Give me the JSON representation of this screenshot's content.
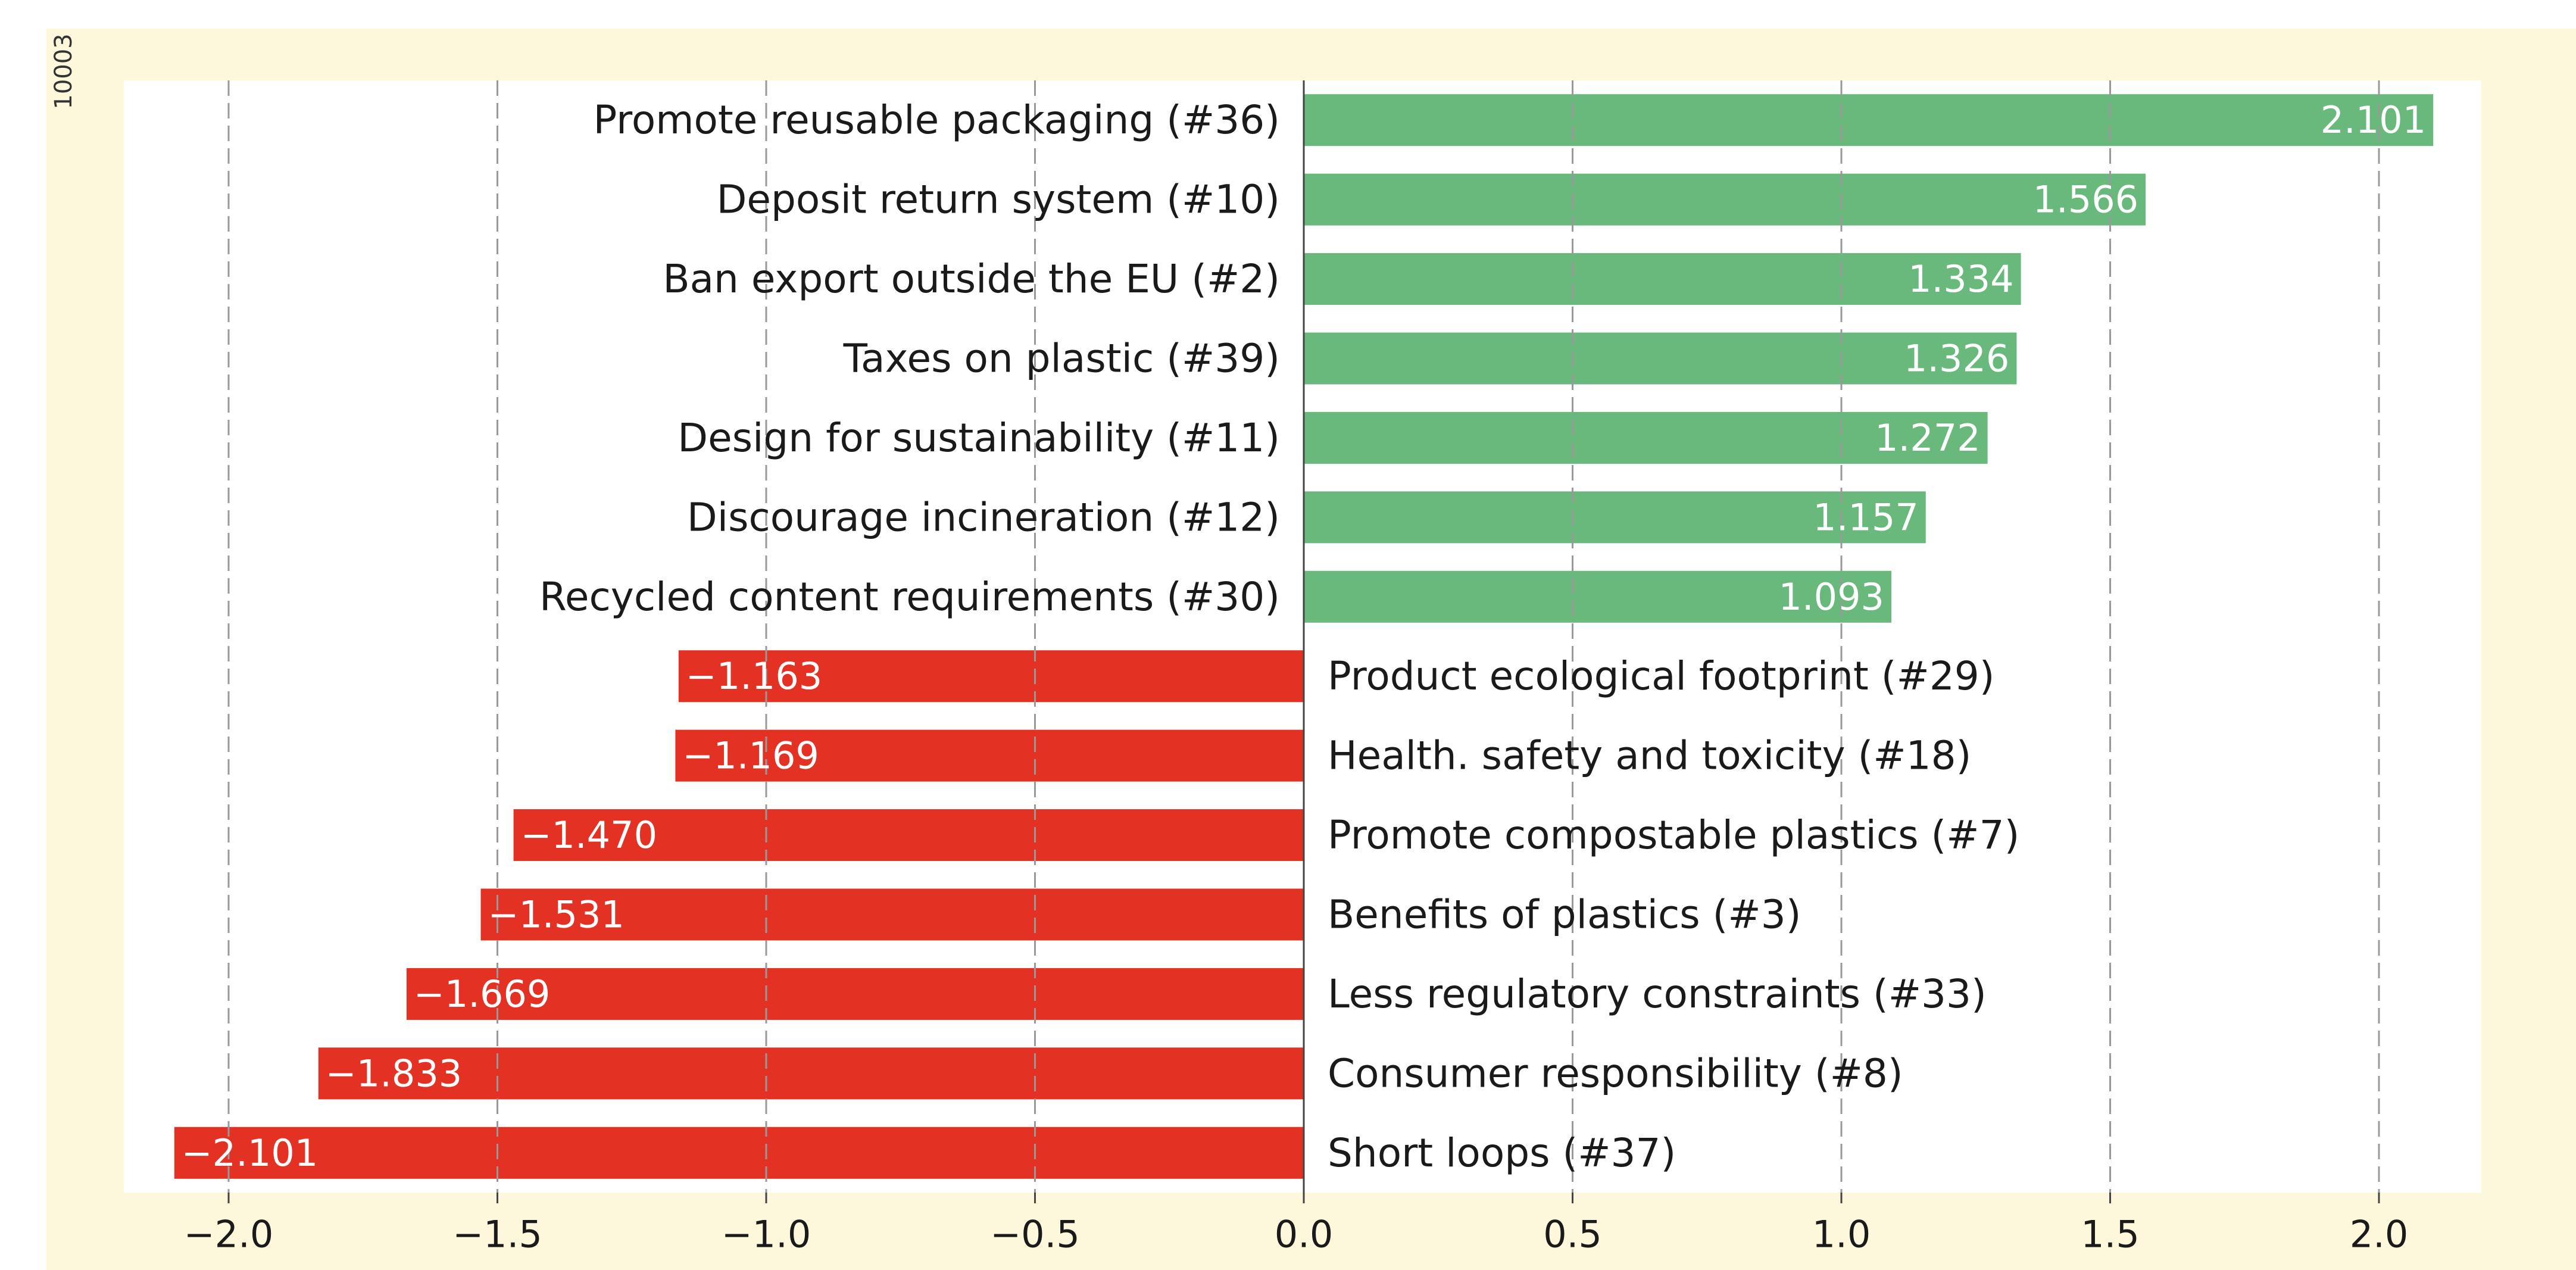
{
  "figure_id": "10003",
  "colors": {
    "positive": "#69b97c",
    "negative": "#e33224",
    "plot_background": "#ffffff",
    "panel_background": "#fdf8dc",
    "text": "#1a1a1a",
    "bar_label": "#ffffff",
    "grid": "#999999"
  },
  "chart_data": {
    "type": "bar",
    "orientation": "horizontal",
    "title": "",
    "xlabel": "",
    "ylabel": "",
    "xlim": [
      -2.1,
      2.1
    ],
    "xticks": [
      -2.0,
      -1.5,
      -1.0,
      -0.5,
      0.0,
      0.5,
      1.0,
      1.5,
      2.0
    ],
    "xtick_labels": [
      "−2.0",
      "−1.5",
      "−1.0",
      "−0.5",
      "0.0",
      "0.5",
      "1.0",
      "1.5",
      "2.0"
    ],
    "grid": "vertical dashed",
    "categories": [
      "Promote reusable packaging (#36)",
      "Deposit return system (#10)",
      "Ban export outside the EU (#2)",
      "Taxes on plastic (#39)",
      "Design for sustainability (#11)",
      "Discourage incineration (#12)",
      "Recycled content requirements (#30)",
      "Product ecological footprint (#29)",
      "Health. safety and toxicity (#18)",
      "Promote compostable plastics (#7)",
      "Benefits of plastics (#3)",
      "Less regulatory constraints (#33)",
      "Consumer responsibility (#8)",
      "Short loops (#37)"
    ],
    "values": [
      2.101,
      1.566,
      1.334,
      1.326,
      1.272,
      1.157,
      1.093,
      -1.163,
      -1.169,
      -1.47,
      -1.531,
      -1.669,
      -1.833,
      -2.101
    ],
    "value_labels": [
      "2.101",
      "1.566",
      "1.334",
      "1.326",
      "1.272",
      "1.157",
      "1.093",
      "−1.163",
      "−1.169",
      "−1.470",
      "−1.531",
      "−1.669",
      "−1.833",
      "−2.101"
    ]
  }
}
